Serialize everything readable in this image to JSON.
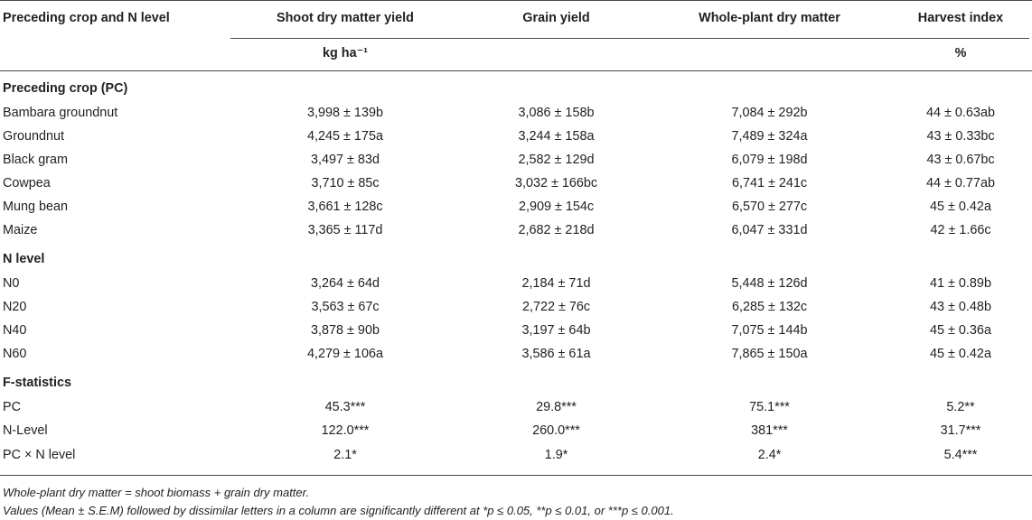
{
  "table": {
    "headers": [
      "Preceding crop and N level",
      "Shoot dry matter yield",
      "Grain yield",
      "Whole-plant dry matter",
      "Harvest index"
    ],
    "units": [
      "",
      "kg ha⁻¹",
      "",
      "",
      "%"
    ],
    "sections": [
      {
        "title": "Preceding crop (PC)",
        "rows": [
          [
            "Bambara groundnut",
            "3,998 ± 139b",
            "3,086 ± 158b",
            "7,084 ± 292b",
            "44 ± 0.63ab"
          ],
          [
            "Groundnut",
            "4,245 ± 175a",
            "3,244 ± 158a",
            "7,489 ± 324a",
            "43 ± 0.33bc"
          ],
          [
            "Black gram",
            "3,497 ± 83d",
            "2,582 ± 129d",
            "6,079 ± 198d",
            "43 ± 0.67bc"
          ],
          [
            "Cowpea",
            "3,710 ± 85c",
            "3,032 ± 166bc",
            "6,741 ± 241c",
            "44 ± 0.77ab"
          ],
          [
            "Mung bean",
            "3,661 ± 128c",
            "2,909 ± 154c",
            "6,570 ± 277c",
            "45 ± 0.42a"
          ],
          [
            "Maize",
            "3,365 ± 117d",
            "2,682 ± 218d",
            "6,047 ± 331d",
            "42 ± 1.66c"
          ]
        ]
      },
      {
        "title": "N level",
        "rows": [
          [
            "N0",
            "3,264 ± 64d",
            "2,184 ± 71d",
            "5,448 ± 126d",
            "41 ± 0.89b"
          ],
          [
            "N20",
            "3,563 ± 67c",
            "2,722 ± 76c",
            "6,285 ± 132c",
            "43 ± 0.48b"
          ],
          [
            "N40",
            "3,878 ± 90b",
            "3,197 ± 64b",
            "7,075 ± 144b",
            "45 ± 0.36a"
          ],
          [
            "N60",
            "4,279 ± 106a",
            "3,586 ± 61a",
            "7,865 ± 150a",
            "45 ± 0.42a"
          ]
        ]
      },
      {
        "title": "F-statistics",
        "rows": [
          [
            "PC",
            "45.3***",
            "29.8***",
            "75.1***",
            "5.2**"
          ],
          [
            "N-Level",
            "122.0***",
            "260.0***",
            "381***",
            "31.7***"
          ],
          [
            "PC × N level",
            "2.1*",
            "1.9*",
            "2.4*",
            "5.4***"
          ]
        ]
      }
    ]
  },
  "notes": [
    "Whole-plant dry matter = shoot biomass + grain dry matter.",
    "Values (Mean ± S.E.M) followed by dissimilar letters in a column are significantly different at *p ≤ 0.05, **p ≤ 0.01, or ***p ≤ 0.001."
  ]
}
